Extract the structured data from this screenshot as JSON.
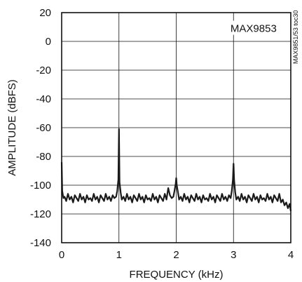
{
  "chart_data": {
    "type": "line",
    "title": "",
    "xlabel": "FREQUENCY (kHz)",
    "ylabel": "AMPLITUDE (dBFS)",
    "xlim": [
      0,
      4
    ],
    "ylim": [
      -140,
      20
    ],
    "xticks": [
      0,
      1,
      2,
      3,
      4
    ],
    "yticks": [
      20,
      0,
      -20,
      -40,
      -60,
      -80,
      -100,
      -120,
      -140
    ],
    "grid": true,
    "annotations": {
      "part": "MAX9853",
      "code": "MAX9851/53 toc30"
    },
    "series": [
      {
        "color": "#1a1a1a",
        "x": [
          0.0,
          0.01,
          0.03,
          0.05,
          0.08,
          0.11,
          0.14,
          0.17,
          0.2,
          0.23,
          0.26,
          0.29,
          0.32,
          0.35,
          0.38,
          0.41,
          0.44,
          0.47,
          0.5,
          0.53,
          0.56,
          0.59,
          0.62,
          0.65,
          0.68,
          0.71,
          0.74,
          0.77,
          0.8,
          0.83,
          0.86,
          0.89,
          0.92,
          0.95,
          0.97,
          0.99,
          1.0,
          1.01,
          1.03,
          1.05,
          1.08,
          1.11,
          1.14,
          1.17,
          1.2,
          1.23,
          1.26,
          1.29,
          1.32,
          1.35,
          1.38,
          1.41,
          1.44,
          1.47,
          1.5,
          1.53,
          1.56,
          1.59,
          1.62,
          1.65,
          1.68,
          1.71,
          1.74,
          1.77,
          1.8,
          1.83,
          1.86,
          1.89,
          1.92,
          1.95,
          1.97,
          1.99,
          2.0,
          2.01,
          2.03,
          2.05,
          2.08,
          2.11,
          2.14,
          2.17,
          2.2,
          2.23,
          2.26,
          2.29,
          2.32,
          2.35,
          2.38,
          2.41,
          2.44,
          2.47,
          2.5,
          2.53,
          2.56,
          2.59,
          2.62,
          2.65,
          2.68,
          2.71,
          2.74,
          2.77,
          2.8,
          2.83,
          2.86,
          2.89,
          2.92,
          2.95,
          2.97,
          2.99,
          3.0,
          3.01,
          3.03,
          3.05,
          3.08,
          3.11,
          3.14,
          3.17,
          3.2,
          3.23,
          3.26,
          3.29,
          3.32,
          3.35,
          3.38,
          3.41,
          3.44,
          3.47,
          3.5,
          3.53,
          3.56,
          3.59,
          3.62,
          3.65,
          3.68,
          3.71,
          3.74,
          3.77,
          3.8,
          3.83,
          3.86,
          3.89,
          3.92,
          3.95,
          3.98,
          4.0
        ],
        "y": [
          -84,
          -104,
          -109,
          -108,
          -111,
          -106,
          -110,
          -108,
          -112,
          -107,
          -109,
          -111,
          -106,
          -110,
          -108,
          -112,
          -107,
          -110,
          -109,
          -111,
          -106,
          -110,
          -108,
          -112,
          -107,
          -109,
          -111,
          -106,
          -110,
          -108,
          -111,
          -107,
          -109,
          -108,
          -104,
          -96,
          -61,
          -98,
          -105,
          -110,
          -108,
          -111,
          -106,
          -110,
          -108,
          -112,
          -107,
          -109,
          -111,
          -106,
          -110,
          -108,
          -112,
          -107,
          -110,
          -109,
          -111,
          -106,
          -110,
          -108,
          -112,
          -107,
          -109,
          -111,
          -106,
          -110,
          -102,
          -107,
          -109,
          -108,
          -104,
          -99,
          -95,
          -100,
          -105,
          -110,
          -108,
          -111,
          -106,
          -110,
          -108,
          -112,
          -107,
          -109,
          -111,
          -106,
          -110,
          -108,
          -112,
          -107,
          -110,
          -109,
          -111,
          -106,
          -110,
          -108,
          -112,
          -107,
          -109,
          -111,
          -106,
          -110,
          -108,
          -111,
          -107,
          -109,
          -104,
          -96,
          -85,
          -96,
          -105,
          -110,
          -108,
          -111,
          -106,
          -110,
          -108,
          -112,
          -107,
          -109,
          -111,
          -106,
          -110,
          -108,
          -112,
          -107,
          -110,
          -109,
          -111,
          -106,
          -110,
          -108,
          -112,
          -107,
          -109,
          -111,
          -106,
          -112,
          -110,
          -114,
          -112,
          -116,
          -113,
          -118
        ]
      }
    ]
  }
}
